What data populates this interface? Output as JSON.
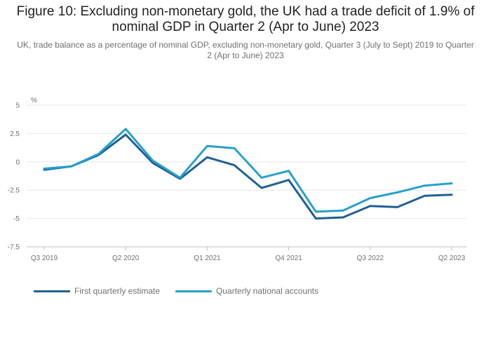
{
  "chart_data": {
    "type": "line",
    "title": "Figure 10: Excluding non-monetary gold, the UK had a trade deficit of 1.9% of nominal GDP in Quarter 2 (Apr to June) 2023",
    "subtitle": "UK, trade balance as a percentage of nominal GDP, excluding non-monetary gold, Quarter 3 (July to Sept) 2019 to Quarter 2 (Apr to June) 2023",
    "ylabel": "%",
    "ylim": [
      -7.5,
      5
    ],
    "yticks": [
      {
        "value": 5,
        "label": "5"
      },
      {
        "value": 2.5,
        "label": "2.5"
      },
      {
        "value": 0,
        "label": "0"
      },
      {
        "value": -2.5,
        "label": "-2.5"
      },
      {
        "value": -5,
        "label": "-5"
      },
      {
        "value": -7.5,
        "label": "-7.5"
      }
    ],
    "x": [
      "Q3 2019",
      "Q4 2019",
      "Q1 2020",
      "Q2 2020",
      "Q3 2020",
      "Q4 2020",
      "Q1 2021",
      "Q2 2021",
      "Q3 2021",
      "Q4 2021",
      "Q1 2022",
      "Q2 2022",
      "Q3 2022",
      "Q4 2022",
      "Q1 2023",
      "Q2 2023"
    ],
    "xtick_labels": [
      "Q3 2019",
      "Q2 2020",
      "Q1 2021",
      "Q4 2021",
      "Q3 2022",
      "Q2 2023"
    ],
    "series": [
      {
        "name": "First quarterly estimate",
        "color": "#206095",
        "values": [
          -0.7,
          -0.4,
          0.6,
          2.4,
          -0.1,
          -1.5,
          0.4,
          -0.3,
          -2.3,
          -1.6,
          -5.0,
          -4.9,
          -3.9,
          -4.0,
          -3.0,
          -2.9
        ]
      },
      {
        "name": "Quarterly national accounts",
        "color": "#27a0cc",
        "values": [
          -0.6,
          -0.4,
          0.7,
          2.9,
          0.1,
          -1.4,
          1.4,
          1.2,
          -1.4,
          -0.8,
          -4.4,
          -4.3,
          -3.2,
          -2.7,
          -2.1,
          -1.9
        ]
      }
    ]
  }
}
